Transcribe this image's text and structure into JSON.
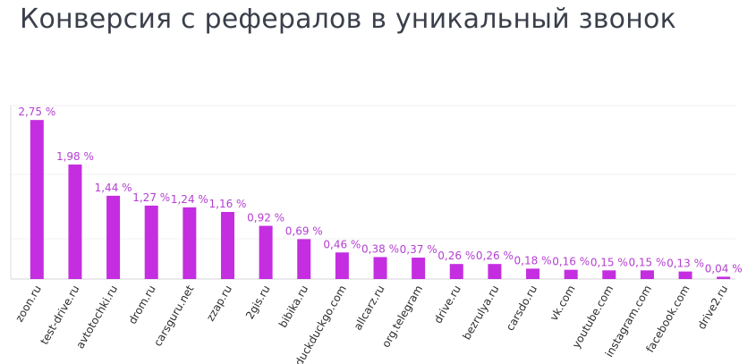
{
  "title": "Конверсия с рефералов в уникальный звонок",
  "chart_data": {
    "type": "bar",
    "title": "Конверсия с рефералов в уникальный звонок",
    "categories": [
      "zoon.ru",
      "test-drive.ru",
      "avtotochki.ru",
      "drom.ru",
      "carsguru.net",
      "zzap.ru",
      "2gis.ru",
      "bibika.ru",
      "duckduckgo.com",
      "allcarz.ru",
      "org.telegram",
      "drive.ru",
      "bezrulya.ru",
      "carsdo.ru",
      "vk.com",
      "youtube.com",
      "instagram.com",
      "facebook.com",
      "drive2.ru"
    ],
    "values": [
      2.75,
      1.98,
      1.44,
      1.27,
      1.24,
      1.16,
      0.92,
      0.69,
      0.46,
      0.38,
      0.37,
      0.26,
      0.26,
      0.18,
      0.16,
      0.15,
      0.15,
      0.13,
      0.04
    ],
    "value_labels": [
      "2,75 %",
      "1,98 %",
      "1,44 %",
      "1,27 %",
      "1,24 %",
      "1,16 %",
      "0,92 %",
      "0,69 %",
      "0,46 %",
      "0,38 %",
      "0,37 %",
      "0,26 %",
      "0,26 %",
      "0,18 %",
      "0,16 %",
      "0,15 %",
      "0,15 %",
      "0,13 %",
      "0,04 %"
    ],
    "ylim": [
      0,
      3.0
    ],
    "grid": true,
    "bar_color": "#c42ee0",
    "label_color": "#b43fd2"
  }
}
